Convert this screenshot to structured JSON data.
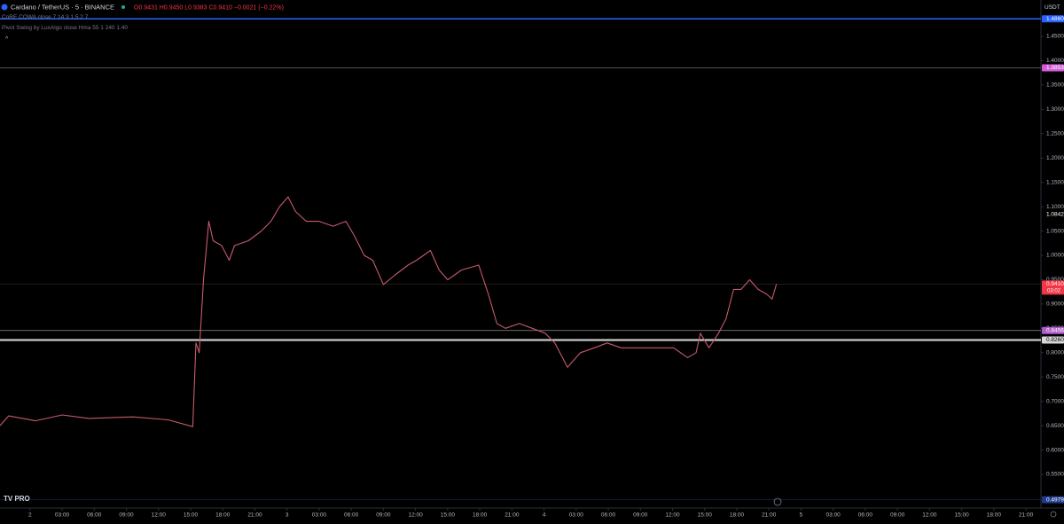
{
  "chart_data": {
    "type": "line",
    "title": "Cardano / TetherUS · 5 · BINANCE",
    "ohlc": "O0.9431 H0.9450 L0.9383 C0.9410 −0.0021 (−0.22%)",
    "indicators": [
      "CoRE COWA close 7 14 3 1.5 2 7",
      "Pivot Swing by LuxAlgo close Hma 55 1 240 1.40"
    ],
    "currency": "USDT",
    "logo": "TV PRO",
    "countdown": "03:02",
    "color": "#c75a6c",
    "x": [
      -2.8,
      -2.0,
      0.5,
      3.0,
      5.5,
      9.6,
      12.9,
      15.2,
      15.5,
      15.8,
      16.2,
      16.7,
      17.1,
      17.9,
      18.6,
      19.1,
      20.4,
      21.6,
      22.5,
      23.3,
      24.1,
      24.8,
      25.8,
      27.0,
      28.3,
      29.5,
      30.3,
      31.2,
      32.0,
      33.0,
      34.1,
      35.3,
      36.1,
      37.4,
      38.2,
      39.0,
      40.3,
      41.9,
      42.8,
      43.6,
      44.4,
      45.7,
      46.9,
      48.1,
      49.0,
      50.2,
      51.4,
      52.7,
      53.9,
      55.2,
      56.8,
      58.5,
      60.1,
      61.4,
      62.2,
      62.6,
      63.4,
      64.3,
      65.0,
      65.7,
      66.4,
      67.2,
      68.0,
      68.8,
      69.3,
      69.7
    ],
    "values": [
      0.65,
      0.67,
      0.66,
      0.672,
      0.665,
      0.668,
      0.662,
      0.648,
      0.82,
      0.8,
      0.95,
      1.07,
      1.03,
      1.02,
      0.99,
      1.02,
      1.03,
      1.05,
      1.07,
      1.1,
      1.12,
      1.09,
      1.07,
      1.07,
      1.06,
      1.07,
      1.04,
      1.0,
      0.99,
      0.94,
      0.96,
      0.98,
      0.99,
      1.01,
      0.97,
      0.95,
      0.97,
      0.98,
      0.92,
      0.86,
      0.85,
      0.86,
      0.85,
      0.84,
      0.82,
      0.77,
      0.8,
      0.81,
      0.82,
      0.81,
      0.81,
      0.81,
      0.81,
      0.79,
      0.8,
      0.84,
      0.81,
      0.84,
      0.87,
      0.93,
      0.93,
      0.95,
      0.93,
      0.92,
      0.91,
      0.941
    ],
    "xlim": [
      -2.8,
      94.4
    ],
    "ylim": [
      0.4808,
      1.5247
    ],
    "xticks": [
      {
        "value": 0,
        "label": "2"
      },
      {
        "value": 3,
        "label": "03:00"
      },
      {
        "value": 6,
        "label": "06:00"
      },
      {
        "value": 9,
        "label": "09:00"
      },
      {
        "value": 12,
        "label": "12:00"
      },
      {
        "value": 15,
        "label": "15:00"
      },
      {
        "value": 18,
        "label": "18:00"
      },
      {
        "value": 21,
        "label": "21:00"
      },
      {
        "value": 24,
        "label": "3"
      },
      {
        "value": 27,
        "label": "03:00"
      },
      {
        "value": 30,
        "label": "06:00"
      },
      {
        "value": 33,
        "label": "09:00"
      },
      {
        "value": 36,
        "label": "12:00"
      },
      {
        "value": 39,
        "label": "15:00"
      },
      {
        "value": 42,
        "label": "18:00"
      },
      {
        "value": 45,
        "label": "21:00"
      },
      {
        "value": 48,
        "label": "4"
      },
      {
        "value": 51,
        "label": "03:00"
      },
      {
        "value": 54,
        "label": "06:00"
      },
      {
        "value": 57,
        "label": "09:00"
      },
      {
        "value": 60,
        "label": "12:00"
      },
      {
        "value": 63,
        "label": "15:00"
      },
      {
        "value": 66,
        "label": "18:00"
      },
      {
        "value": 69,
        "label": "21:00"
      },
      {
        "value": 72,
        "label": "5"
      },
      {
        "value": 75,
        "label": "03:00"
      },
      {
        "value": 78,
        "label": "06:00"
      },
      {
        "value": 81,
        "label": "09:00"
      },
      {
        "value": 84,
        "label": "12:00"
      },
      {
        "value": 87,
        "label": "15:00"
      },
      {
        "value": 90,
        "label": "18:00"
      },
      {
        "value": 93,
        "label": "21:00"
      }
    ],
    "yticks": [
      {
        "value": 0.55,
        "label": "0.5500"
      },
      {
        "value": 0.6,
        "label": "0.6000"
      },
      {
        "value": 0.65,
        "label": "0.6500"
      },
      {
        "value": 0.7,
        "label": "0.7000"
      },
      {
        "value": 0.75,
        "label": "0.7500"
      },
      {
        "value": 0.8,
        "label": "0.8000"
      },
      {
        "value": 0.85,
        "label": "0.8500"
      },
      {
        "value": 0.9,
        "label": "0.9000"
      },
      {
        "value": 0.95,
        "label": "0.9500"
      },
      {
        "value": 1.0,
        "label": "1.0000"
      },
      {
        "value": 1.05,
        "label": "1.0500"
      },
      {
        "value": 1.1,
        "label": "1.1000"
      },
      {
        "value": 1.15,
        "label": "1.1500"
      },
      {
        "value": 1.2,
        "label": "1.2000"
      },
      {
        "value": 1.25,
        "label": "1.2500"
      },
      {
        "value": 1.3,
        "label": "1.3000"
      },
      {
        "value": 1.35,
        "label": "1.3500"
      },
      {
        "value": 1.4,
        "label": "1.4000"
      },
      {
        "value": 1.45,
        "label": "1.4500"
      }
    ],
    "levels": [
      {
        "value": 1.486,
        "label": "1.4860",
        "color": "#2962ff",
        "line_color": "#2962ff",
        "line_width": 1.5
      },
      {
        "value": 1.3853,
        "label": "1.3853",
        "color": "#d35bd8",
        "line_color": "#6a6a6a",
        "line_width": 0.8
      },
      {
        "value": 1.0842,
        "label": "1.0842",
        "color": "#000000",
        "line_color": "#000000",
        "line_width": 0
      },
      {
        "value": 0.941,
        "label": "0.9410",
        "color": "#f23645",
        "line_color": "#3a2a2e",
        "line_width": 0.6
      },
      {
        "value": 0.8456,
        "label": "0.8456",
        "color": "#b05ccc",
        "line_color": "#8a8a8a",
        "line_width": 0.8
      },
      {
        "value": 0.826,
        "label": "0.8260",
        "color": "#d8d8d8",
        "line_color": "#c8c8c8",
        "line_width": 2.2
      },
      {
        "value": 0.4979,
        "label": "0.4979",
        "color": "#1e3a8a",
        "line_color": "#14224d",
        "line_width": 0.8
      }
    ]
  }
}
